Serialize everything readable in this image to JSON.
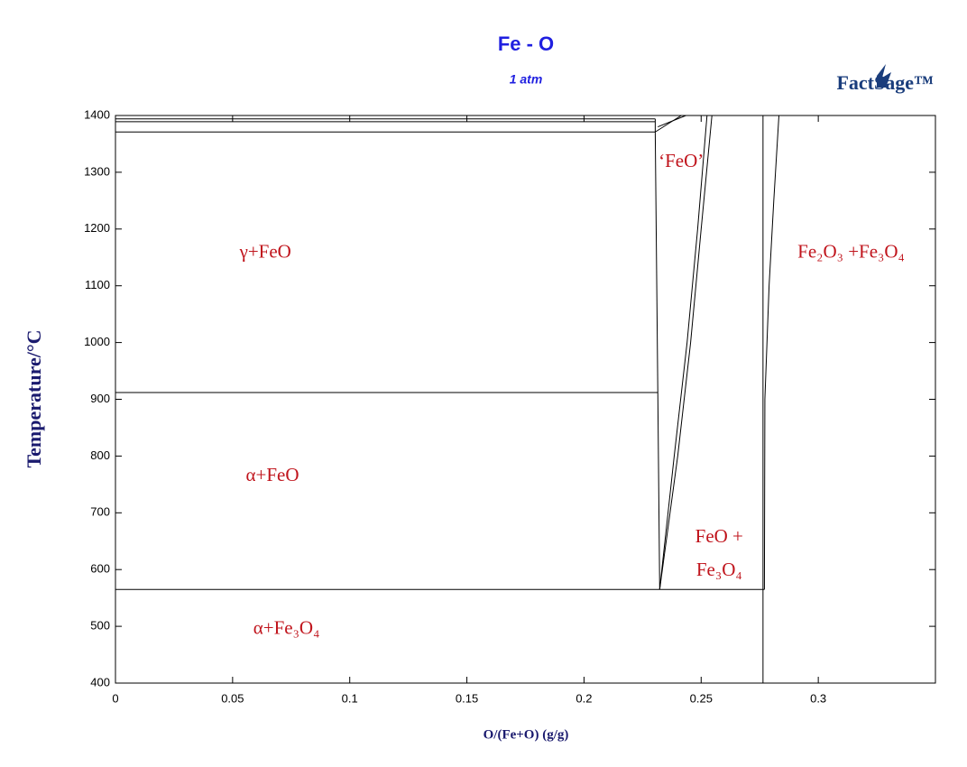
{
  "chart_data": {
    "type": "line",
    "title": "Fe - O",
    "subtitle": "1 atm",
    "logo": "FactSage™",
    "x_label": "O/(Fe+O) (g/g)",
    "y_label": "Temperature/°C",
    "xlim": [
      0,
      0.35
    ],
    "ylim": [
      400,
      1400
    ],
    "xticks": [
      0,
      0.05,
      0.1,
      0.15,
      0.2,
      0.25,
      0.3
    ],
    "yticks": [
      400,
      500,
      600,
      700,
      800,
      900,
      1000,
      1100,
      1200,
      1300,
      1400
    ],
    "series": [
      {
        "color": "#000000",
        "x": [
          0,
          0.2315
        ],
        "values": [
          912,
          912
        ]
      },
      {
        "color": "#000000",
        "x": [
          0,
          0.277
        ],
        "values": [
          565,
          565
        ]
      },
      {
        "color": "#000000",
        "x": [
          0,
          0.2304
        ],
        "values": [
          1371,
          1371
        ]
      },
      {
        "color": "#000000",
        "x": [
          0,
          0.2304
        ],
        "values": [
          1389,
          1389
        ]
      },
      {
        "color": "#000000",
        "x": [
          0,
          0.2304
        ],
        "values": [
          1394,
          1394
        ]
      },
      {
        "color": "#000000",
        "x": [
          0.2323,
          0.2315,
          0.2304,
          0.2304
        ],
        "values": [
          565,
          912,
          1371,
          1394
        ]
      },
      {
        "color": "#000000",
        "x": [
          0.2323,
          0.24,
          0.2455,
          0.25,
          0.2546
        ],
        "values": [
          565,
          800,
          1000,
          1200,
          1400
        ]
      },
      {
        "color": "#000000",
        "x": [
          0.2323,
          0.2385,
          0.244,
          0.2485,
          0.2525
        ],
        "values": [
          565,
          800,
          1000,
          1200,
          1400
        ]
      },
      {
        "color": "#000000",
        "x": [
          0.2304,
          0.2415
        ],
        "values": [
          1371,
          1400
        ]
      },
      {
        "color": "#000000",
        "x": [
          0.2315,
          0.2435
        ],
        "values": [
          1380,
          1400
        ]
      },
      {
        "color": "#000000",
        "x": [
          0.2764,
          0.2764
        ],
        "values": [
          400,
          1400
        ]
      },
      {
        "color": "#000000",
        "x": [
          0.277,
          0.2772,
          0.279,
          0.281,
          0.2832
        ],
        "values": [
          565,
          900,
          1100,
          1250,
          1400
        ]
      }
    ],
    "annotations": [
      {
        "text": "γ+FeO",
        "x": 0.064,
        "y": 1157
      },
      {
        "text": "α+FeO",
        "x": 0.067,
        "y": 764
      },
      {
        "text": "α+Fe₃O₄",
        "x": 0.073,
        "y": 494
      },
      {
        "text": "‘FeO’",
        "x": 0.2415,
        "y": 1317
      },
      {
        "text": "FeO +",
        "x": 0.2577,
        "y": 656
      },
      {
        "text": "Fe₃O₄",
        "x": 0.2577,
        "y": 597
      },
      {
        "text": "Fe₂O₃ +Fe₃O₄",
        "x": 0.314,
        "y": 1157
      }
    ],
    "annotation_color": "#c0141c"
  }
}
